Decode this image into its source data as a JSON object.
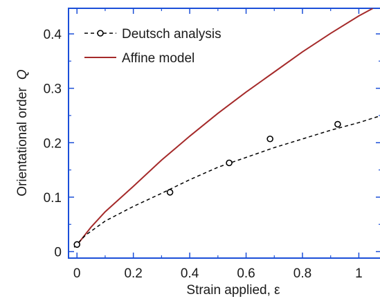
{
  "chart_data": {
    "type": "line",
    "xlabel": "Strain applied, ε",
    "ylabel": "Orientational order",
    "ylabel_symbol": "Q",
    "xlim": [
      -0.03,
      1.08
    ],
    "ylim": [
      -0.012,
      0.447
    ],
    "xticks": [
      0,
      0.2,
      0.4,
      0.6,
      0.8,
      1
    ],
    "xtick_labels": [
      "0",
      "0.2",
      "0.4",
      "0.6",
      "0.8",
      "1"
    ],
    "yticks": [
      0,
      0.1,
      0.2,
      0.3,
      0.4
    ],
    "ytick_labels": [
      "0",
      "0.1",
      "0.2",
      "0.3",
      "0.4"
    ],
    "grid": false,
    "legend_position": "top-left",
    "series": [
      {
        "name": "Deutsch analysis",
        "kind": "points-and-dashed-fit",
        "color": "#000000",
        "points": [
          {
            "x": 0.0,
            "y": 0.013
          },
          {
            "x": 0.33,
            "y": 0.109
          },
          {
            "x": 0.54,
            "y": 0.163
          },
          {
            "x": 0.685,
            "y": 0.207
          },
          {
            "x": 0.925,
            "y": 0.234
          }
        ],
        "fit": [
          {
            "x": -0.01,
            "y": 0.008
          },
          {
            "x": 0.03,
            "y": 0.03
          },
          {
            "x": 0.1,
            "y": 0.056
          },
          {
            "x": 0.2,
            "y": 0.083
          },
          {
            "x": 0.3,
            "y": 0.107
          },
          {
            "x": 0.4,
            "y": 0.132
          },
          {
            "x": 0.5,
            "y": 0.155
          },
          {
            "x": 0.6,
            "y": 0.173
          },
          {
            "x": 0.7,
            "y": 0.191
          },
          {
            "x": 0.8,
            "y": 0.207
          },
          {
            "x": 0.9,
            "y": 0.223
          },
          {
            "x": 1.0,
            "y": 0.237
          },
          {
            "x": 1.08,
            "y": 0.25
          }
        ]
      },
      {
        "name": "Affine model",
        "kind": "line",
        "color": "#a52a2a",
        "line": [
          {
            "x": 0.0,
            "y": 0.012
          },
          {
            "x": 0.05,
            "y": 0.045
          },
          {
            "x": 0.1,
            "y": 0.073
          },
          {
            "x": 0.2,
            "y": 0.12
          },
          {
            "x": 0.3,
            "y": 0.168
          },
          {
            "x": 0.4,
            "y": 0.212
          },
          {
            "x": 0.5,
            "y": 0.254
          },
          {
            "x": 0.6,
            "y": 0.293
          },
          {
            "x": 0.7,
            "y": 0.33
          },
          {
            "x": 0.8,
            "y": 0.367
          },
          {
            "x": 0.9,
            "y": 0.401
          },
          {
            "x": 1.0,
            "y": 0.433
          },
          {
            "x": 1.05,
            "y": 0.447
          }
        ]
      }
    ]
  }
}
